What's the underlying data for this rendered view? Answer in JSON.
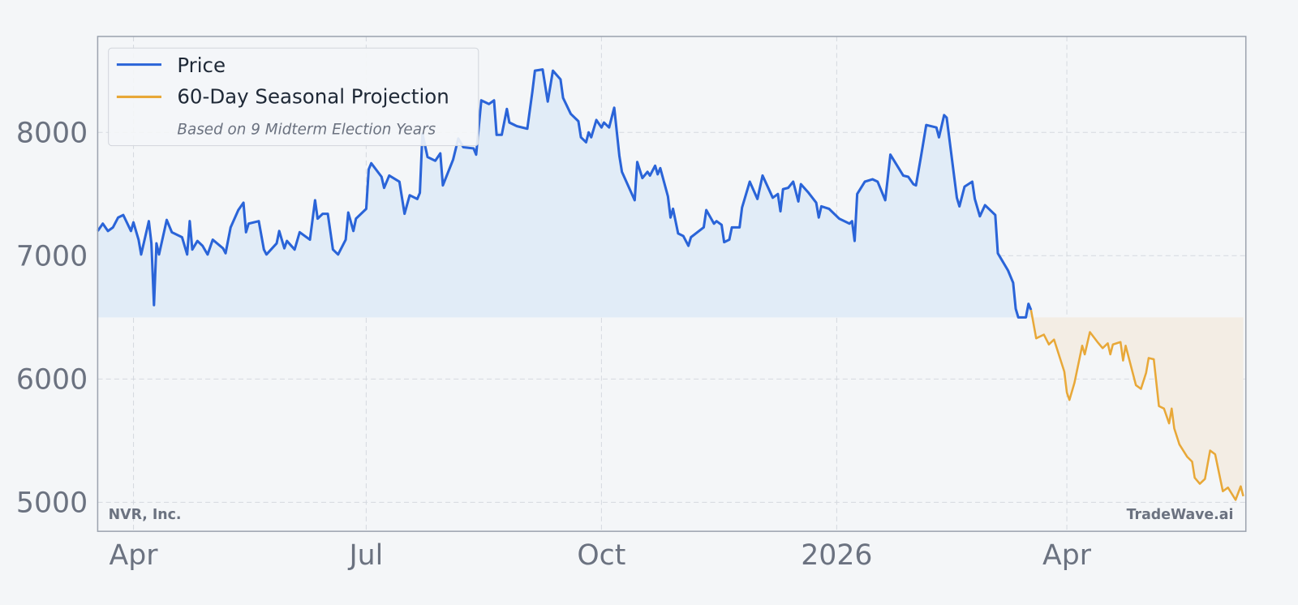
{
  "chart_data": {
    "type": "line",
    "legend_subtitle": "Based on 9 Midterm Election Years",
    "watermark_left": "NVR, Inc.",
    "watermark_right": "TradeWave.ai",
    "legend": "upper left",
    "grid": true,
    "fill_base": 6500,
    "xlim": [
      -14,
      435
    ],
    "ylim": [
      4765,
      8778
    ],
    "xticks": [
      {
        "value": 0,
        "label": "Apr"
      },
      {
        "value": 91,
        "label": "Jul"
      },
      {
        "value": 183,
        "label": "Oct"
      },
      {
        "value": 275,
        "label": "2026"
      },
      {
        "value": 365,
        "label": "Apr"
      }
    ],
    "yticks": [
      5000,
      6000,
      7000,
      8000
    ],
    "series": [
      {
        "name": "Price",
        "color": "#2a64d8",
        "fill": "#e1ecf7",
        "x": [
          -14,
          -12,
          -10,
          -8,
          -6,
          -4,
          -1,
          0,
          2,
          3,
          6,
          7,
          8,
          9,
          10,
          13,
          15,
          19,
          21,
          22,
          23,
          25,
          27,
          29,
          31,
          35,
          36,
          38,
          41,
          43,
          44,
          45,
          49,
          51,
          52,
          56,
          57,
          59,
          60,
          63,
          65,
          69,
          71,
          72,
          74,
          76,
          78,
          80,
          83,
          84,
          86,
          87,
          91,
          92,
          93,
          97,
          98,
          100,
          104,
          106,
          108,
          111,
          112,
          113,
          115,
          118,
          120,
          121,
          125,
          127,
          129,
          133,
          134,
          136,
          139,
          141,
          142,
          144,
          146,
          147,
          150,
          154,
          156,
          157,
          160,
          162,
          164,
          167,
          168,
          171,
          174,
          175,
          177,
          178,
          179,
          181,
          183,
          184,
          186,
          188,
          190,
          191,
          196,
          197,
          199,
          201,
          202,
          204,
          205,
          206,
          209,
          210,
          211,
          213,
          215,
          217,
          218,
          223,
          224,
          227,
          228,
          230,
          231,
          233,
          234,
          237,
          238,
          241,
          244,
          246,
          250,
          252,
          253,
          254,
          256,
          258,
          260,
          261,
          264,
          267,
          268,
          269,
          272,
          276,
          280,
          281,
          282,
          283,
          286,
          289,
          291,
          294,
          296,
          301,
          303,
          305,
          306,
          308,
          310,
          314,
          315,
          317,
          318,
          322,
          323,
          325,
          328,
          329,
          331,
          333,
          336,
          337,
          338,
          342,
          344,
          345,
          346,
          349,
          350,
          351
        ],
        "values": [
          7200,
          7260,
          7200,
          7230,
          7310,
          7330,
          7200,
          7270,
          7130,
          7010,
          7280,
          7100,
          6600,
          7100,
          7010,
          7290,
          7190,
          7150,
          7010,
          7280,
          7050,
          7120,
          7080,
          7010,
          7130,
          7060,
          7020,
          7230,
          7370,
          7430,
          7190,
          7260,
          7280,
          7050,
          7010,
          7100,
          7200,
          7060,
          7120,
          7050,
          7190,
          7130,
          7450,
          7300,
          7340,
          7340,
          7050,
          7010,
          7130,
          7350,
          7200,
          7300,
          7380,
          7700,
          7750,
          7640,
          7550,
          7650,
          7600,
          7340,
          7490,
          7460,
          7510,
          7990,
          7800,
          7770,
          7830,
          7570,
          7780,
          7950,
          7880,
          7870,
          7820,
          8260,
          8230,
          8260,
          7980,
          7980,
          8190,
          8080,
          8050,
          8030,
          8330,
          8500,
          8510,
          8250,
          8500,
          8430,
          8280,
          8150,
          8090,
          7960,
          7920,
          8000,
          7960,
          8100,
          8040,
          8080,
          8040,
          8200,
          7810,
          7680,
          7450,
          7760,
          7630,
          7680,
          7650,
          7730,
          7660,
          7710,
          7480,
          7310,
          7380,
          7180,
          7160,
          7080,
          7150,
          7230,
          7370,
          7260,
          7280,
          7250,
          7110,
          7130,
          7230,
          7230,
          7390,
          7600,
          7460,
          7650,
          7470,
          7500,
          7360,
          7540,
          7550,
          7600,
          7440,
          7580,
          7510,
          7430,
          7310,
          7400,
          7380,
          7300,
          7260,
          7280,
          7120,
          7500,
          7600,
          7620,
          7600,
          7450,
          7820,
          7650,
          7640,
          7580,
          7570,
          7810,
          8060,
          8040,
          7960,
          8140,
          8120,
          7470,
          7400,
          7560,
          7600,
          7460,
          7320,
          7410,
          7350,
          7330,
          7020,
          6880,
          6780,
          6570,
          6500,
          6500,
          6610,
          6560
        ]
      },
      {
        "name": "60-Day Seasonal Projection",
        "color": "#e8a838",
        "fill": "#f3ede4",
        "x": [
          351,
          353,
          356,
          358,
          360,
          364,
          365,
          366,
          368,
          371,
          372,
          374,
          377,
          379,
          381,
          382,
          383,
          386,
          387,
          388,
          392,
          394,
          396,
          397,
          399,
          401,
          403,
          405,
          406,
          407,
          409,
          412,
          414,
          415,
          417,
          419,
          421,
          423,
          426,
          428,
          431,
          433,
          434
        ],
        "values": [
          6560,
          6330,
          6360,
          6280,
          6320,
          6060,
          5890,
          5830,
          5970,
          6270,
          6200,
          6380,
          6300,
          6250,
          6290,
          6200,
          6280,
          6300,
          6150,
          6270,
          5950,
          5920,
          6050,
          6170,
          6160,
          5780,
          5760,
          5640,
          5760,
          5600,
          5470,
          5370,
          5330,
          5200,
          5150,
          5190,
          5420,
          5390,
          5090,
          5120,
          5020,
          5130,
          5050
        ]
      }
    ]
  }
}
